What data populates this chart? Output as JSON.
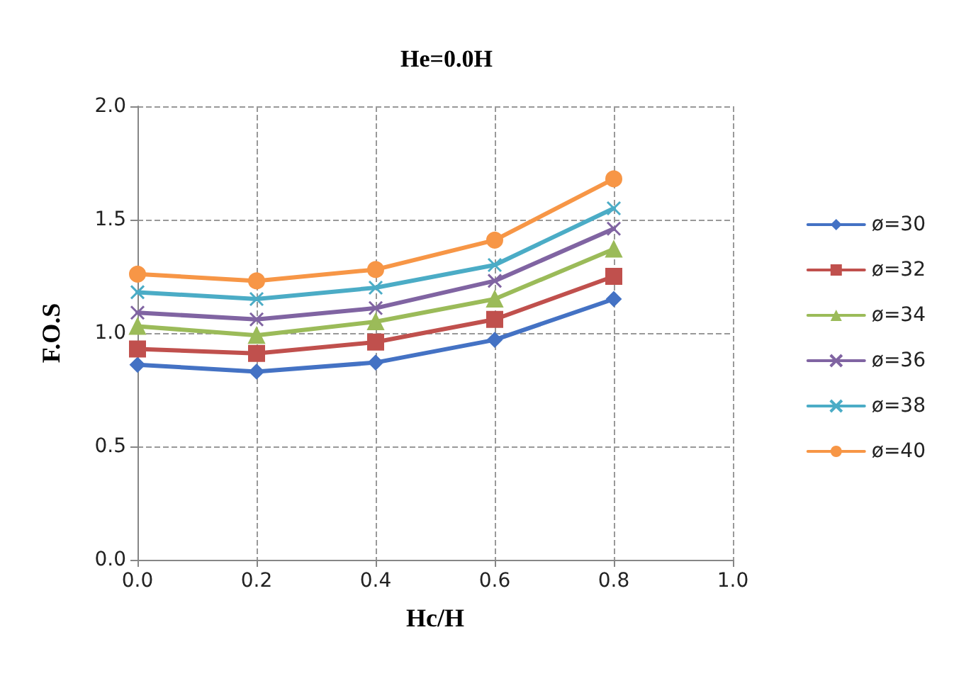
{
  "chart_data": {
    "type": "line",
    "title": "He=0.0H",
    "xlabel": "Hc/H",
    "ylabel": "F.O.S",
    "x": [
      0.0,
      0.2,
      0.4,
      0.6,
      0.8
    ],
    "series": [
      {
        "name": "ø=30",
        "color": "#4472c4",
        "marker": "diamond",
        "values": [
          0.86,
          0.83,
          0.87,
          0.97,
          1.15
        ]
      },
      {
        "name": "ø=32",
        "color": "#c0504d",
        "marker": "square",
        "values": [
          0.93,
          0.91,
          0.96,
          1.06,
          1.25
        ]
      },
      {
        "name": "ø=34",
        "color": "#9bbb59",
        "marker": "triangle",
        "values": [
          1.03,
          0.99,
          1.05,
          1.15,
          1.37
        ]
      },
      {
        "name": "ø=36",
        "color": "#8064a2",
        "marker": "cross",
        "values": [
          1.09,
          1.06,
          1.11,
          1.23,
          1.46
        ]
      },
      {
        "name": "ø=38",
        "color": "#4bacc6",
        "marker": "cross",
        "values": [
          1.18,
          1.15,
          1.2,
          1.3,
          1.55
        ]
      },
      {
        "name": "ø=40",
        "color": "#f79646",
        "marker": "circle",
        "values": [
          1.26,
          1.23,
          1.28,
          1.41,
          1.68
        ]
      }
    ],
    "xlim": [
      0.0,
      1.0
    ],
    "xticks": [
      {
        "value": 0,
        "label": "0.0"
      },
      0.2,
      0.4,
      0.6,
      0.8,
      {
        "value": 1,
        "label": "1.0"
      }
    ],
    "ylim": [
      0.0,
      2.0
    ],
    "yticks": [
      {
        "value": 0,
        "label": "0.0"
      },
      0.5,
      {
        "value": 1,
        "label": "1.0"
      },
      1.5,
      {
        "value": 2,
        "label": "2.0"
      }
    ],
    "grid": true,
    "legend": "right",
    "line_style": "solid"
  }
}
